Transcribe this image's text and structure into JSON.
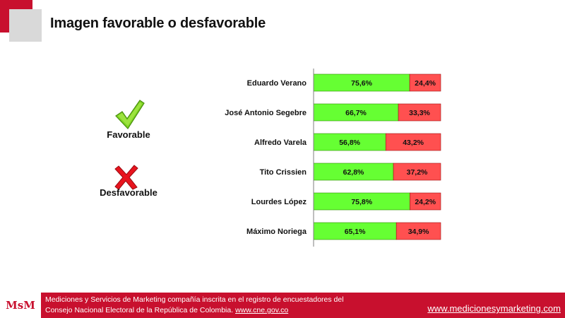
{
  "title": "Imagen favorable o desfavorable",
  "legend": {
    "favorable_label": "Favorable",
    "unfavorable_label": "Desfavorable",
    "favorable_icon": "check-icon",
    "unfavorable_icon": "cross-icon"
  },
  "colors": {
    "favorable": "#66ff33",
    "unfavorable": "#ff5050",
    "brand": "#c8102e"
  },
  "chart_data": {
    "type": "bar",
    "orientation": "horizontal",
    "stacked": true,
    "normalized": true,
    "categories": [
      "Eduardo Verano",
      "José Antonio Segebre",
      "Alfredo Varela",
      "Tito Crissien",
      "Lourdes López",
      "Máximo Noriega"
    ],
    "series": [
      {
        "name": "Favorable",
        "values": [
          75.6,
          66.7,
          56.8,
          62.8,
          75.8,
          65.1
        ],
        "labels": [
          "75,6%",
          "66,7%",
          "56,8%",
          "62,8%",
          "75,8%",
          "65,1%"
        ]
      },
      {
        "name": "Desfavorable",
        "values": [
          24.4,
          33.3,
          43.2,
          37.2,
          24.2,
          34.9
        ],
        "labels": [
          "24,4%",
          "33,3%",
          "43,2%",
          "37,2%",
          "24,2%",
          "34,9%"
        ]
      }
    ],
    "xlim": [
      0,
      100
    ],
    "grid": false,
    "legend": "left"
  },
  "footer": {
    "logo": "MsM",
    "line1": "Mediciones y Servicios de Marketing compañía inscrita en el registro de encuestadores del",
    "line2_prefix": "Consejo Nacional Electoral  de la República de Colombia. ",
    "line2_link": "www.cne.gov.co",
    "url": "www.medicionesymarketing.com"
  }
}
